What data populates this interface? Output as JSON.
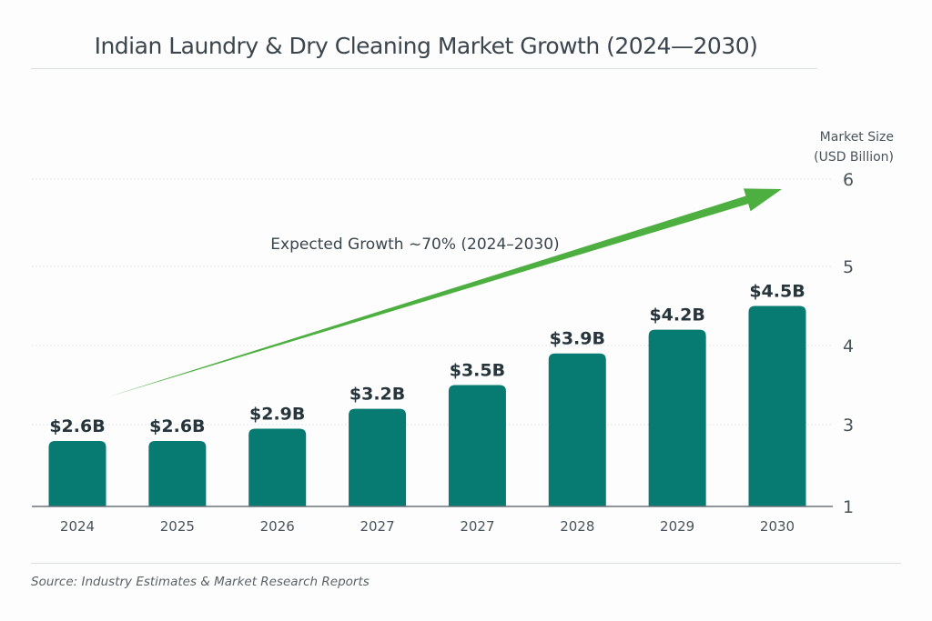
{
  "chart_data": {
    "type": "bar",
    "title": "Indian Laundry & Dry Cleaning Market Growth (2024—2030)",
    "categories": [
      "2024",
      "2025",
      "2026",
      "2027",
      "2027",
      "2028",
      "2029",
      "2030"
    ],
    "values": [
      2.6,
      2.6,
      2.9,
      3.2,
      3.5,
      3.9,
      4.2,
      4.5
    ],
    "data_labels": [
      "$2.6B",
      "$2.6B",
      "$2.9B",
      "$3.2B",
      "$3.5B",
      "$3.9B",
      "$4.2B",
      "$4.5B"
    ],
    "xlabel": "",
    "ylabel": "Market Size (USD Billion)",
    "ylabel_lines": [
      "Market Size",
      "(USD Billion)"
    ],
    "yticks": [
      1,
      3,
      4,
      5,
      6
    ],
    "ylim": [
      1,
      6
    ],
    "y_axis_side": "right",
    "grid": true,
    "bar_color": "#077a72",
    "annotation": {
      "text": "Expected Growth ~70% (2024–2030)",
      "arrow_color": "#4caf3f",
      "arrow_from": {
        "category_index": 0,
        "value": 3.0
      },
      "arrow_to": {
        "category_index": 7.3,
        "value": 6.0
      }
    },
    "source": "Source: Industry Estimates & Market Research Reports"
  }
}
